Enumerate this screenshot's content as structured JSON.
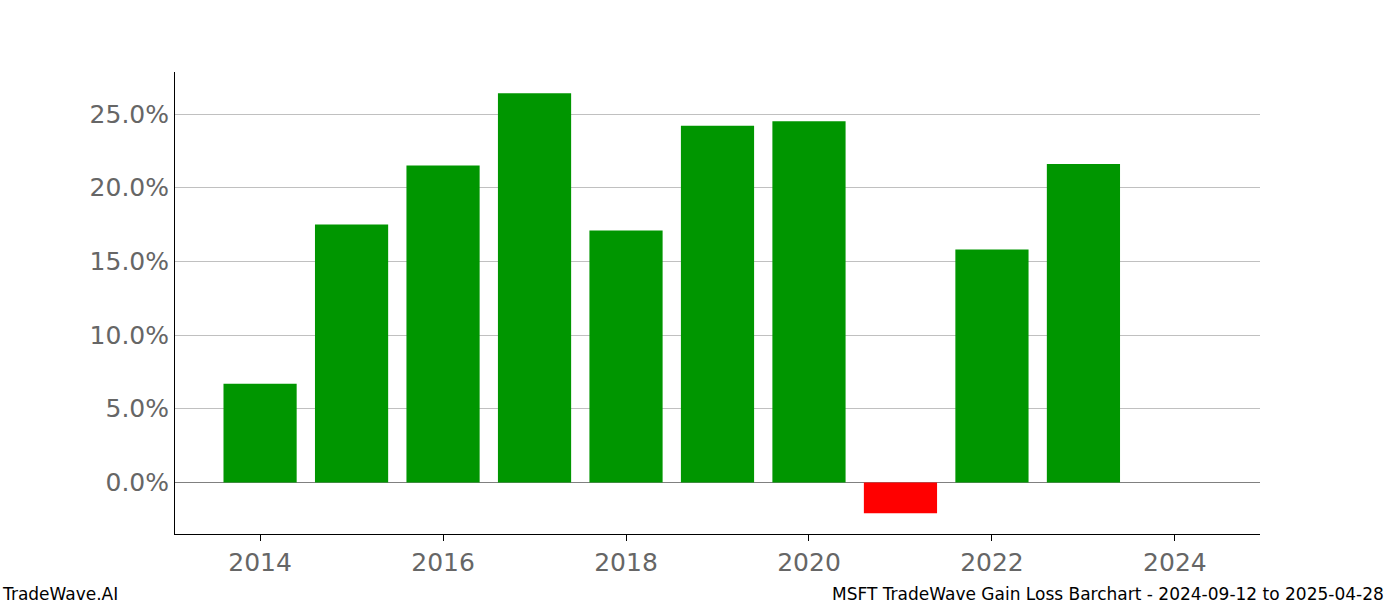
{
  "chart_data": {
    "type": "bar",
    "x": [
      2014,
      2015,
      2016,
      2017,
      2018,
      2019,
      2020,
      2021,
      2022,
      2023
    ],
    "values": [
      6.7,
      17.5,
      21.5,
      26.4,
      17.1,
      24.2,
      24.5,
      -2.1,
      15.8,
      21.6
    ],
    "colors": [
      "#009600",
      "#009600",
      "#009600",
      "#009600",
      "#009600",
      "#009600",
      "#009600",
      "#ff0000",
      "#009600",
      "#009600"
    ],
    "xlim": [
      2013.07,
      2024.93
    ],
    "xticks": [
      2014,
      2016,
      2018,
      2020,
      2022,
      2024
    ],
    "ylim": [
      -3.5,
      27.85
    ],
    "yticks": [
      {
        "value": 0,
        "label": "0.0%"
      },
      {
        "value": 5,
        "label": "5.0%"
      },
      {
        "value": 10,
        "label": "10.0%"
      },
      {
        "value": 15,
        "label": "15.0%"
      },
      {
        "value": 20,
        "label": "20.0%"
      },
      {
        "value": 25,
        "label": "25.0%"
      }
    ],
    "grid": true,
    "annotations": [
      "TradeWave.AI",
      "MSFT TradeWave Gain Loss Barchart - 2024-09-12 to 2025-04-28"
    ]
  }
}
